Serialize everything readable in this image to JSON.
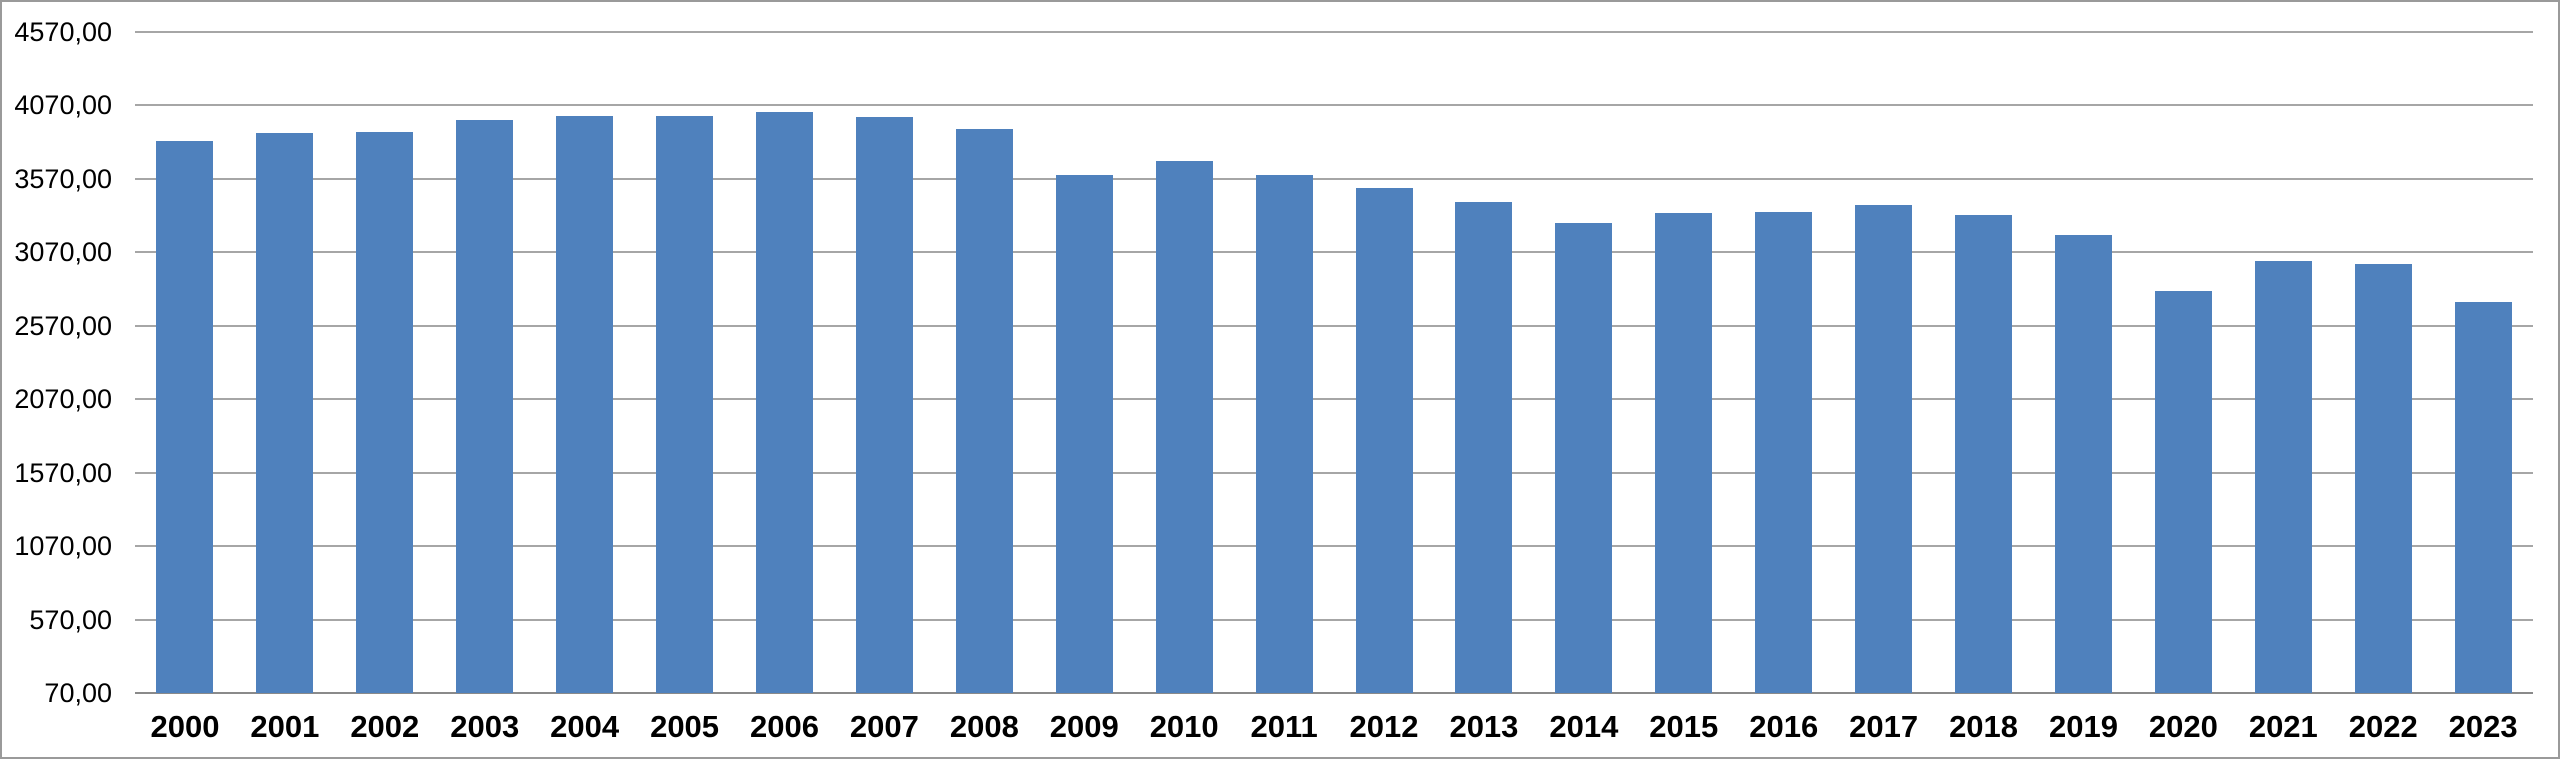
{
  "chart_data": {
    "type": "bar",
    "title": "",
    "xlabel": "",
    "ylabel": "",
    "categories": [
      "2000",
      "2001",
      "2002",
      "2003",
      "2004",
      "2005",
      "2006",
      "2007",
      "2008",
      "2009",
      "2010",
      "2011",
      "2012",
      "2013",
      "2014",
      "2015",
      "2016",
      "2017",
      "2018",
      "2019",
      "2020",
      "2021",
      "2022",
      "2023"
    ],
    "values": [
      3825,
      3885,
      3890,
      3970,
      3995,
      3995,
      4025,
      3990,
      3910,
      3595,
      3690,
      3595,
      3510,
      3410,
      3270,
      3335,
      3345,
      3390,
      3325,
      3185,
      2810,
      3010,
      2990,
      2730
    ],
    "ylim": [
      70,
      4570
    ],
    "ytick_interval": 500,
    "yticks": [
      {
        "value": 4570,
        "label": "4570,00"
      },
      {
        "value": 4070,
        "label": "4070,00"
      },
      {
        "value": 3570,
        "label": "3570,00"
      },
      {
        "value": 3070,
        "label": "3070,00"
      },
      {
        "value": 2570,
        "label": "2570,00"
      },
      {
        "value": 2070,
        "label": "2070,00"
      },
      {
        "value": 1570,
        "label": "1570,00"
      },
      {
        "value": 1070,
        "label": "1070,00"
      },
      {
        "value": 570,
        "label": "570,00"
      },
      {
        "value": 70,
        "label": "70,00"
      }
    ],
    "number_format": "comma-decimal",
    "grid": true,
    "legend": false,
    "legend_position": "none",
    "colors": {
      "bar": "#4F81BD",
      "gridline": "#A6A6A6",
      "axis_line": "#8A8A8A",
      "frame_border": "#9A9A9A",
      "text": "#000000",
      "background": "#FFFFFF"
    }
  }
}
